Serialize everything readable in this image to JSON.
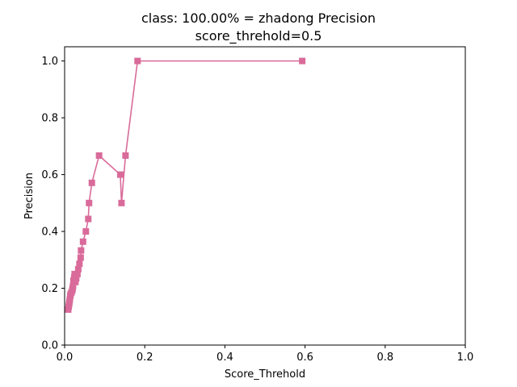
{
  "chart_data": {
    "type": "line",
    "title": "class: 100.00% = zhadong Precision",
    "subtitle": "score_threhold=0.5",
    "xlabel": "Score_Threhold",
    "ylabel": "Precision",
    "xlim": [
      0.0,
      1.0
    ],
    "ylim": [
      0.0,
      1.05
    ],
    "x_ticks": [
      "0.0",
      "0.2",
      "0.4",
      "0.6",
      "0.8",
      "1.0"
    ],
    "y_ticks": [
      "0.0",
      "0.2",
      "0.4",
      "0.6",
      "0.8",
      "1.0"
    ],
    "grid": false,
    "marker": "square",
    "color": "#d96b9a",
    "series": [
      {
        "x": [
          0.593,
          0.182,
          0.152,
          0.142,
          0.139,
          0.086,
          0.068,
          0.061,
          0.059,
          0.053,
          0.046,
          0.041,
          0.04,
          0.037,
          0.034,
          0.032,
          0.029,
          0.027,
          0.025,
          0.024,
          0.022,
          0.021,
          0.02,
          0.019,
          0.017,
          0.015,
          0.014,
          0.013,
          0.012,
          0.011,
          0.01,
          0.009
        ],
        "y": [
          1.0,
          1.0,
          0.667,
          0.5,
          0.6,
          0.667,
          0.571,
          0.5,
          0.444,
          0.4,
          0.364,
          0.333,
          0.308,
          0.286,
          0.267,
          0.25,
          0.235,
          0.222,
          0.25,
          0.238,
          0.227,
          0.208,
          0.2,
          0.192,
          0.185,
          0.179,
          0.172,
          0.161,
          0.152,
          0.143,
          0.135,
          0.125
        ]
      }
    ]
  }
}
